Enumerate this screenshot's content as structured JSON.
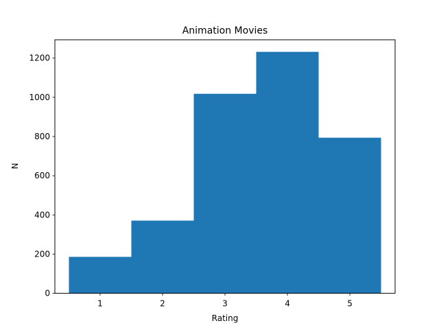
{
  "chart_data": {
    "type": "bar",
    "title": "Animation Movies",
    "xlabel": "Rating",
    "ylabel": "N",
    "categories": [
      "1",
      "2",
      "3",
      "4",
      "5"
    ],
    "x": [
      1,
      2,
      3,
      4,
      5
    ],
    "values": [
      186,
      371,
      1018,
      1232,
      794
    ],
    "bin_width": 1,
    "xlim": [
      0.275,
      5.725
    ],
    "ylim": [
      0,
      1293.6
    ],
    "xticks": [
      1,
      2,
      3,
      4,
      5
    ],
    "xtick_labels": [
      "1",
      "2",
      "3",
      "4",
      "5"
    ],
    "yticks": [
      0,
      200,
      400,
      600,
      800,
      1000,
      1200
    ],
    "ytick_labels": [
      "0",
      "200",
      "400",
      "600",
      "800",
      "1000",
      "1200"
    ],
    "bar_color": "#1f77b4",
    "grid": false,
    "legend": "none"
  }
}
